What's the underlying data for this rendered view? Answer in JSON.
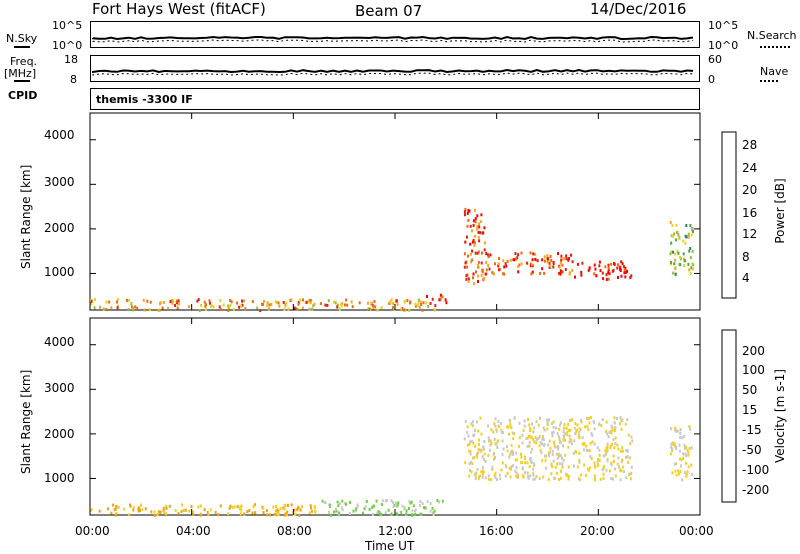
{
  "header": {
    "title": "Fort Hays West (fitACF)",
    "beam": "Beam 07",
    "date": "14/Dec/2016"
  },
  "top_panels": {
    "nsky_label": "N.Sky",
    "nsky_ticks": [
      "10^5",
      "10^0"
    ],
    "nsearch_label": "N.Search",
    "nsearch_ticks": [
      "10^5",
      "10^0"
    ],
    "freq_label": "Freq.",
    "freq_unit": "[MHz]",
    "freq_ticks": [
      "18",
      "8"
    ],
    "nave_label": "Nave",
    "nave_ticks": [
      "60",
      "0"
    ],
    "cpid_label": "CPID",
    "cpid_value": "themis -3300 IF"
  },
  "x_axis": {
    "label": "Time UT",
    "ticks": [
      "00:00",
      "04:00",
      "08:00",
      "12:00",
      "16:00",
      "20:00",
      "00:00"
    ]
  },
  "power_panel": {
    "ylabel": "Slant Range [km]",
    "yticks": [
      "4000",
      "3000",
      "2000",
      "1000"
    ],
    "colorbar_label": "Power [dB]",
    "colorbar_ticks": [
      "28",
      "24",
      "20",
      "16",
      "12",
      "8",
      "4"
    ],
    "colors": [
      "#0000ff",
      "#1f4fd0",
      "#2e7d6e",
      "#4aa84a",
      "#88c43f",
      "#e8d21a",
      "#f5a623",
      "#f06a10",
      "#e02010",
      "#ff0000"
    ]
  },
  "velocity_panel": {
    "ylabel": "Slant Range [km]",
    "yticks": [
      "4000",
      "3000",
      "2000",
      "1000"
    ],
    "colorbar_label": "Velocity [m s-1]",
    "colorbar_ticks": [
      "200",
      "100",
      "50",
      "15",
      "-15",
      "-50",
      "-100",
      "-200"
    ],
    "colors": [
      "#1f2fd0",
      "#2f6f9f",
      "#3f8f5f",
      "#6fcf3f",
      "#c8c8c8",
      "#f5d020",
      "#f5a010",
      "#f07010",
      "#e03010",
      "#ff0000"
    ]
  },
  "chart_data": [
    {
      "type": "heatmap",
      "title": "Power",
      "xlabel": "Time UT",
      "ylabel": "Slant Range [km]",
      "xlim": [
        0,
        24
      ],
      "ylim": [
        180,
        4600
      ],
      "colorbar": {
        "label": "Power [dB]",
        "range": [
          0,
          30
        ]
      },
      "regions": [
        {
          "t_start": 0.0,
          "t_end": 13.6,
          "range_lo": 200,
          "range_hi": 450,
          "value": 20
        },
        {
          "t_start": 13.2,
          "t_end": 14.0,
          "range_lo": 300,
          "range_hi": 550,
          "value": 26
        },
        {
          "t_start": 14.7,
          "t_end": 15.5,
          "range_lo": 800,
          "range_hi": 2500,
          "value": 24
        },
        {
          "t_start": 15.5,
          "t_end": 19.0,
          "range_lo": 1000,
          "range_hi": 1500,
          "value": 24
        },
        {
          "t_start": 19.0,
          "t_end": 21.3,
          "range_lo": 900,
          "range_hi": 1300,
          "value": 28
        },
        {
          "t_start": 22.8,
          "t_end": 23.7,
          "range_lo": 1000,
          "range_hi": 2200,
          "value": 14
        }
      ]
    },
    {
      "type": "heatmap",
      "title": "Velocity",
      "xlabel": "Time UT",
      "ylabel": "Slant Range [km]",
      "xlim": [
        0,
        24
      ],
      "ylim": [
        180,
        4600
      ],
      "colorbar": {
        "label": "Velocity [m s-1]",
        "range": [
          -250,
          250
        ]
      },
      "regions": [
        {
          "t_start": 0.0,
          "t_end": 9.0,
          "range_lo": 200,
          "range_hi": 450,
          "value": 50
        },
        {
          "t_start": 9.0,
          "t_end": 13.9,
          "range_lo": 200,
          "range_hi": 550,
          "value": -50
        },
        {
          "t_start": 14.7,
          "t_end": 21.3,
          "range_lo": 1000,
          "range_hi": 2400,
          "value": 0
        },
        {
          "t_start": 22.8,
          "t_end": 23.7,
          "range_lo": 1000,
          "range_hi": 2200,
          "value": 0
        }
      ]
    }
  ]
}
